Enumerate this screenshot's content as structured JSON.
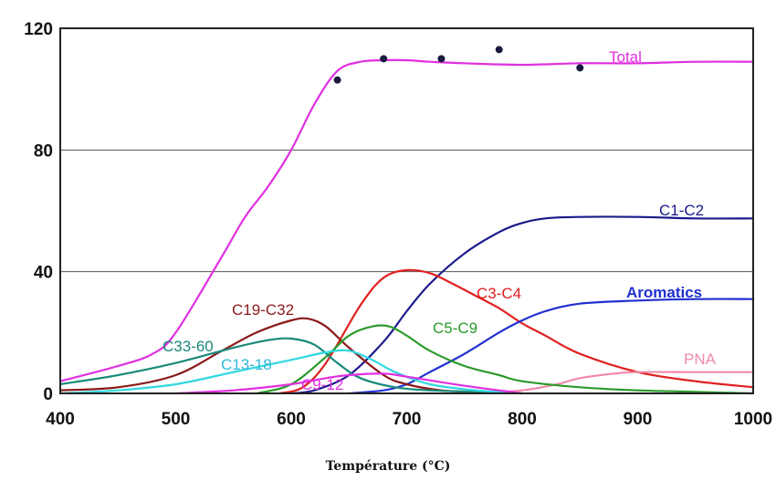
{
  "chart_data": {
    "type": "line",
    "title": "",
    "xlabel": "Température (°C)",
    "ylabel": "",
    "xlim": [
      400,
      1000
    ],
    "ylim": [
      0,
      120
    ],
    "x_ticks": [
      "400",
      "500",
      "600",
      "700",
      "800",
      "900",
      "1000"
    ],
    "y_ticks": [
      "0",
      "40",
      "80",
      "120"
    ],
    "grid": "horizontal at 40 and 80",
    "legend": "none (series labelled inline)",
    "series": [
      {
        "name": "Total",
        "color": "#e030e0",
        "x": [
          400,
          450,
          480,
          500,
          540,
          560,
          580,
          600,
          620,
          640,
          660,
          680,
          700,
          720,
          750,
          800,
          850,
          900,
          950,
          1000
        ],
        "y": [
          4,
          9,
          13,
          20,
          45,
          58,
          68,
          80,
          95,
          106,
          109,
          109.5,
          109.5,
          109,
          108.5,
          108,
          108.5,
          108.5,
          109,
          109
        ]
      },
      {
        "name": "C1-C2",
        "color": "#1a1a8c",
        "x": [
          600,
          620,
          650,
          680,
          700,
          720,
          750,
          780,
          800,
          820,
          850,
          900,
          950,
          1000
        ],
        "y": [
          0,
          1,
          6,
          17,
          27,
          36,
          46,
          53,
          56,
          57.5,
          58,
          58,
          57.5,
          57.5
        ]
      },
      {
        "name": "C3-C4",
        "color": "#e02020",
        "x": [
          590,
          610,
          630,
          660,
          680,
          700,
          720,
          740,
          760,
          780,
          800,
          820,
          850,
          900,
          950,
          1000
        ],
        "y": [
          0,
          2,
          10,
          29,
          38,
          40.5,
          39.5,
          36,
          32,
          28,
          23,
          19,
          13,
          7,
          4,
          2
        ]
      },
      {
        "name": "Aromatics",
        "color": "#2030d0",
        "x": [
          650,
          680,
          700,
          720,
          750,
          780,
          800,
          820,
          850,
          900,
          950,
          1000
        ],
        "y": [
          0,
          1,
          3,
          7,
          13,
          20,
          24,
          27,
          29.5,
          30.5,
          31,
          31
        ]
      },
      {
        "name": "PNA",
        "color": "#f08aa8",
        "x": [
          760,
          800,
          830,
          850,
          880,
          900,
          950,
          1000
        ],
        "y": [
          0,
          1,
          3,
          5,
          6.5,
          7,
          7,
          7
        ]
      },
      {
        "name": "C19-C32",
        "color": "#8b1a1a",
        "x": [
          400,
          450,
          500,
          540,
          570,
          600,
          615,
          630,
          650,
          680,
          700,
          730,
          760,
          800
        ],
        "y": [
          1,
          2,
          6,
          14,
          20,
          24,
          24.5,
          22,
          15,
          6,
          3,
          1,
          0.5,
          0
        ]
      },
      {
        "name": "C5-C9",
        "color": "#2a9a2a",
        "x": [
          570,
          600,
          630,
          650,
          670,
          685,
          700,
          720,
          750,
          780,
          800,
          850,
          900,
          950,
          1000
        ],
        "y": [
          0,
          3,
          12,
          19,
          22,
          22,
          19,
          14,
          9,
          6,
          4,
          2,
          1,
          0.5,
          0
        ]
      },
      {
        "name": "C33-60",
        "color": "#1a8a7a",
        "x": [
          400,
          450,
          500,
          550,
          580,
          600,
          620,
          640,
          660,
          690,
          720,
          760,
          800
        ],
        "y": [
          3,
          6,
          10,
          15,
          17.5,
          18,
          16,
          10,
          5,
          2,
          1,
          0.5,
          0
        ]
      },
      {
        "name": "C13-18",
        "color": "#30d8e0",
        "x": [
          400,
          450,
          500,
          550,
          600,
          630,
          650,
          670,
          690,
          720,
          760,
          800
        ],
        "y": [
          0,
          1,
          3,
          7,
          11,
          13.5,
          14,
          11,
          7,
          3,
          1,
          0
        ]
      },
      {
        "name": "C9-12",
        "color": "#e030e0",
        "x": [
          500,
          550,
          600,
          630,
          650,
          680,
          700,
          750,
          800
        ],
        "y": [
          0,
          1,
          3,
          5,
          6,
          6.5,
          5.5,
          2.5,
          0
        ]
      }
    ],
    "markers": {
      "x": [
        640,
        680,
        730,
        780,
        850
      ],
      "y": [
        103,
        110,
        110,
        113,
        107
      ]
    },
    "annotations": {
      "total": "Total",
      "c1c2": "C1-C2",
      "c3c4": "C3-C4",
      "aromatics": "Aromatics",
      "pna": "PNA",
      "c19c32": "C19-C32",
      "c5c9": "C5-C9",
      "c33_60": "C33-60",
      "c13_18": "C13-18",
      "c9_12": "C9-12"
    }
  }
}
